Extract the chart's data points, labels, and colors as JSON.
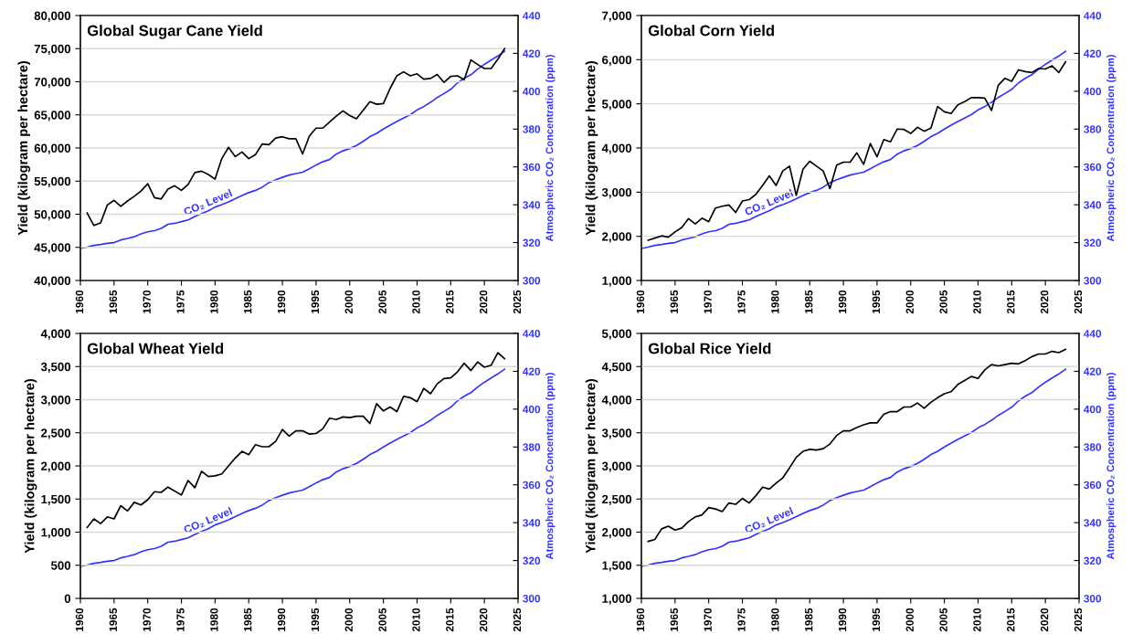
{
  "chart_data": [
    {
      "type": "line",
      "title": "Global Sugar Cane Yield",
      "ylabel": "Yield (kilogram per hectare)",
      "y2label": "Atmospheric CO₂ Concentration (ppm)",
      "xlim": [
        1960,
        2025
      ],
      "xticks": [
        1960,
        1965,
        1970,
        1975,
        1980,
        1985,
        1990,
        1995,
        2000,
        2005,
        2010,
        2015,
        2020,
        2025
      ],
      "ylim": [
        40000,
        80000
      ],
      "yticks": [
        {
          "value": 40000,
          "label": "40,000"
        },
        {
          "value": 45000,
          "label": "45,000"
        },
        {
          "value": 50000,
          "label": "50,000"
        },
        {
          "value": 55000,
          "label": "55,000"
        },
        {
          "value": 60000,
          "label": "60,000"
        },
        {
          "value": 65000,
          "label": "65,000"
        },
        {
          "value": 70000,
          "label": "70,000"
        },
        {
          "value": 75000,
          "label": "75,000"
        },
        {
          "value": 80000,
          "label": "80,000"
        }
      ],
      "y2lim": [
        300,
        440
      ],
      "y2ticks": [
        300,
        320,
        340,
        360,
        380,
        400,
        420,
        440
      ],
      "grid": "y",
      "series": [
        {
          "color": "#000000",
          "x": [
            1961,
            1962,
            1963,
            1964,
            1965,
            1966,
            1967,
            1968,
            1969,
            1970,
            1971,
            1972,
            1973,
            1974,
            1975,
            1976,
            1977,
            1978,
            1979,
            1980,
            1981,
            1982,
            1983,
            1984,
            1985,
            1986,
            1987,
            1988,
            1989,
            1990,
            1991,
            1992,
            1993,
            1994,
            1995,
            1996,
            1997,
            1998,
            1999,
            2000,
            2001,
            2002,
            2003,
            2004,
            2005,
            2006,
            2007,
            2008,
            2009,
            2010,
            2011,
            2012,
            2013,
            2014,
            2015,
            2016,
            2017,
            2018,
            2019,
            2020,
            2021,
            2022,
            2023
          ],
          "values": [
            50200,
            48300,
            48700,
            51400,
            52100,
            51200,
            52000,
            52700,
            53500,
            54600,
            52500,
            52300,
            53800,
            54300,
            53600,
            54500,
            56300,
            56500,
            56000,
            55300,
            58400,
            60100,
            58700,
            59400,
            58400,
            59000,
            60600,
            60500,
            61500,
            61700,
            61400,
            61400,
            59100,
            61800,
            63000,
            63000,
            63900,
            64800,
            65600,
            64900,
            64400,
            65700,
            67000,
            66600,
            66700,
            69000,
            70900,
            71500,
            70900,
            71200,
            70400,
            70500,
            71100,
            69900,
            70800,
            70900,
            70300,
            73300,
            72600,
            72000,
            72000,
            73400,
            75000
          ]
        },
        {
          "name": "CO₂ Level",
          "color": "#3333ff",
          "axis": "y2",
          "x": [
            1960,
            1961,
            1962,
            1963,
            1964,
            1965,
            1966,
            1967,
            1968,
            1969,
            1970,
            1971,
            1972,
            1973,
            1974,
            1975,
            1976,
            1977,
            1978,
            1979,
            1980,
            1981,
            1982,
            1983,
            1984,
            1985,
            1986,
            1987,
            1988,
            1989,
            1990,
            1991,
            1992,
            1993,
            1994,
            1995,
            1996,
            1997,
            1998,
            1999,
            2000,
            2001,
            2002,
            2003,
            2004,
            2005,
            2006,
            2007,
            2008,
            2009,
            2010,
            2011,
            2012,
            2013,
            2014,
            2015,
            2016,
            2017,
            2018,
            2019,
            2020,
            2021,
            2022,
            2023
          ],
          "values": [
            316.9,
            317.6,
            318.5,
            319.0,
            319.6,
            320.0,
            321.4,
            322.2,
            323.1,
            324.6,
            325.7,
            326.3,
            327.5,
            329.7,
            330.2,
            331.1,
            332.0,
            333.8,
            335.4,
            336.8,
            338.8,
            340.1,
            341.5,
            343.2,
            344.9,
            346.4,
            347.6,
            349.3,
            351.7,
            353.2,
            354.5,
            355.7,
            356.5,
            357.2,
            359.0,
            361.0,
            362.7,
            363.9,
            366.8,
            368.5,
            369.7,
            371.3,
            373.5,
            376.0,
            377.7,
            380.0,
            382.1,
            384.0,
            385.8,
            387.6,
            390.1,
            391.9,
            394.1,
            396.7,
            398.8,
            401.0,
            404.4,
            406.8,
            408.7,
            411.7,
            414.2,
            416.5,
            418.6,
            421.1
          ]
        }
      ]
    },
    {
      "type": "line",
      "title": "Global Corn Yield",
      "ylabel": "Yield (kilogram per hectare)",
      "y2label": "Atmospheric CO₂ Concentration (ppm)",
      "xlim": [
        1960,
        2025
      ],
      "xticks": [
        1960,
        1965,
        1970,
        1975,
        1980,
        1985,
        1990,
        1995,
        2000,
        2005,
        2010,
        2015,
        2020,
        2025
      ],
      "ylim": [
        1000,
        7000
      ],
      "yticks": [
        {
          "value": 1000,
          "label": "1,000"
        },
        {
          "value": 2000,
          "label": "2,000"
        },
        {
          "value": 3000,
          "label": "3,000"
        },
        {
          "value": 4000,
          "label": "4,000"
        },
        {
          "value": 5000,
          "label": "5,000"
        },
        {
          "value": 6000,
          "label": "6,000"
        },
        {
          "value": 7000,
          "label": "7,000"
        }
      ],
      "y2lim": [
        300,
        440
      ],
      "y2ticks": [
        300,
        320,
        340,
        360,
        380,
        400,
        420,
        440
      ],
      "grid": "y",
      "series": [
        {
          "color": "#000000",
          "x": [
            1961,
            1962,
            1963,
            1964,
            1965,
            1966,
            1967,
            1968,
            1969,
            1970,
            1971,
            1972,
            1973,
            1974,
            1975,
            1976,
            1977,
            1978,
            1979,
            1980,
            1981,
            1982,
            1983,
            1984,
            1985,
            1986,
            1987,
            1988,
            1989,
            1990,
            1991,
            1992,
            1993,
            1994,
            1995,
            1996,
            1997,
            1998,
            1999,
            2000,
            2001,
            2002,
            2003,
            2004,
            2005,
            2006,
            2007,
            2008,
            2009,
            2010,
            2011,
            2012,
            2013,
            2014,
            2015,
            2016,
            2017,
            2018,
            2019,
            2020,
            2021,
            2022,
            2023
          ],
          "values": [
            1910,
            1960,
            2010,
            1980,
            2100,
            2200,
            2400,
            2280,
            2410,
            2330,
            2640,
            2680,
            2710,
            2540,
            2800,
            2830,
            2950,
            3150,
            3370,
            3150,
            3480,
            3590,
            2930,
            3520,
            3700,
            3590,
            3480,
            3080,
            3610,
            3680,
            3680,
            3890,
            3630,
            4100,
            3800,
            4190,
            4140,
            4430,
            4420,
            4330,
            4470,
            4380,
            4450,
            4940,
            4820,
            4780,
            4980,
            5050,
            5140,
            5140,
            5130,
            4850,
            5420,
            5580,
            5510,
            5770,
            5730,
            5710,
            5800,
            5790,
            5860,
            5710,
            5950
          ]
        },
        {
          "name": "CO₂ Level",
          "color": "#3333ff",
          "axis": "y2",
          "x": [
            1960,
            1961,
            1962,
            1963,
            1964,
            1965,
            1966,
            1967,
            1968,
            1969,
            1970,
            1971,
            1972,
            1973,
            1974,
            1975,
            1976,
            1977,
            1978,
            1979,
            1980,
            1981,
            1982,
            1983,
            1984,
            1985,
            1986,
            1987,
            1988,
            1989,
            1990,
            1991,
            1992,
            1993,
            1994,
            1995,
            1996,
            1997,
            1998,
            1999,
            2000,
            2001,
            2002,
            2003,
            2004,
            2005,
            2006,
            2007,
            2008,
            2009,
            2010,
            2011,
            2012,
            2013,
            2014,
            2015,
            2016,
            2017,
            2018,
            2019,
            2020,
            2021,
            2022,
            2023
          ],
          "values": [
            316.9,
            317.6,
            318.5,
            319.0,
            319.6,
            320.0,
            321.4,
            322.2,
            323.1,
            324.6,
            325.7,
            326.3,
            327.5,
            329.7,
            330.2,
            331.1,
            332.0,
            333.8,
            335.4,
            336.8,
            338.8,
            340.1,
            341.5,
            343.2,
            344.9,
            346.4,
            347.6,
            349.3,
            351.7,
            353.2,
            354.5,
            355.7,
            356.5,
            357.2,
            359.0,
            361.0,
            362.7,
            363.9,
            366.8,
            368.5,
            369.7,
            371.3,
            373.5,
            376.0,
            377.7,
            380.0,
            382.1,
            384.0,
            385.8,
            387.6,
            390.1,
            391.9,
            394.1,
            396.7,
            398.8,
            401.0,
            404.4,
            406.8,
            408.7,
            411.7,
            414.2,
            416.5,
            418.6,
            421.1
          ]
        }
      ]
    },
    {
      "type": "line",
      "title": "Global Wheat Yield",
      "ylabel": "Yield (kilogram per hectare)",
      "y2label": "Atmospheric CO₂ Concentration (ppm)",
      "xlim": [
        1960,
        2025
      ],
      "xticks": [
        1960,
        1965,
        1970,
        1975,
        1980,
        1985,
        1990,
        1995,
        2000,
        2005,
        2010,
        2015,
        2020,
        2025
      ],
      "ylim": [
        0,
        4000
      ],
      "yticks": [
        0,
        500,
        {
          "value": 1000,
          "label": "1,000"
        },
        {
          "value": 1500,
          "label": "1,500"
        },
        {
          "value": 2000,
          "label": "2,000"
        },
        {
          "value": 2500,
          "label": "2,500"
        },
        {
          "value": 3000,
          "label": "3,000"
        },
        {
          "value": 3500,
          "label": "3,500"
        },
        {
          "value": 4000,
          "label": "4,000"
        }
      ],
      "y2lim": [
        300,
        440
      ],
      "y2ticks": [
        300,
        320,
        340,
        360,
        380,
        400,
        420,
        440
      ],
      "grid": "y",
      "series": [
        {
          "color": "#000000",
          "x": [
            1961,
            1962,
            1963,
            1964,
            1965,
            1966,
            1967,
            1968,
            1969,
            1970,
            1971,
            1972,
            1973,
            1974,
            1975,
            1976,
            1977,
            1978,
            1979,
            1980,
            1981,
            1982,
            1983,
            1984,
            1985,
            1986,
            1987,
            1988,
            1989,
            1990,
            1991,
            1992,
            1993,
            1994,
            1995,
            1996,
            1997,
            1998,
            1999,
            2000,
            2001,
            2002,
            2003,
            2004,
            2005,
            2006,
            2007,
            2008,
            2009,
            2010,
            2011,
            2012,
            2013,
            2014,
            2015,
            2016,
            2017,
            2018,
            2019,
            2020,
            2021,
            2022,
            2023
          ],
          "values": [
            1070,
            1200,
            1130,
            1230,
            1200,
            1400,
            1320,
            1450,
            1410,
            1490,
            1610,
            1600,
            1680,
            1620,
            1560,
            1780,
            1670,
            1920,
            1840,
            1850,
            1880,
            2000,
            2120,
            2220,
            2170,
            2320,
            2290,
            2290,
            2370,
            2550,
            2450,
            2530,
            2530,
            2480,
            2490,
            2560,
            2720,
            2700,
            2740,
            2730,
            2750,
            2750,
            2640,
            2940,
            2830,
            2890,
            2820,
            3050,
            3030,
            2970,
            3170,
            3090,
            3240,
            3320,
            3330,
            3420,
            3550,
            3440,
            3570,
            3490,
            3520,
            3710,
            3620
          ]
        },
        {
          "name": "CO₂ Level",
          "color": "#3333ff",
          "axis": "y2",
          "x": [
            1960,
            1961,
            1962,
            1963,
            1964,
            1965,
            1966,
            1967,
            1968,
            1969,
            1970,
            1971,
            1972,
            1973,
            1974,
            1975,
            1976,
            1977,
            1978,
            1979,
            1980,
            1981,
            1982,
            1983,
            1984,
            1985,
            1986,
            1987,
            1988,
            1989,
            1990,
            1991,
            1992,
            1993,
            1994,
            1995,
            1996,
            1997,
            1998,
            1999,
            2000,
            2001,
            2002,
            2003,
            2004,
            2005,
            2006,
            2007,
            2008,
            2009,
            2010,
            2011,
            2012,
            2013,
            2014,
            2015,
            2016,
            2017,
            2018,
            2019,
            2020,
            2021,
            2022,
            2023
          ],
          "values": [
            316.9,
            317.6,
            318.5,
            319.0,
            319.6,
            320.0,
            321.4,
            322.2,
            323.1,
            324.6,
            325.7,
            326.3,
            327.5,
            329.7,
            330.2,
            331.1,
            332.0,
            333.8,
            335.4,
            336.8,
            338.8,
            340.1,
            341.5,
            343.2,
            344.9,
            346.4,
            347.6,
            349.3,
            351.7,
            353.2,
            354.5,
            355.7,
            356.5,
            357.2,
            359.0,
            361.0,
            362.7,
            363.9,
            366.8,
            368.5,
            369.7,
            371.3,
            373.5,
            376.0,
            377.7,
            380.0,
            382.1,
            384.0,
            385.8,
            387.6,
            390.1,
            391.9,
            394.1,
            396.7,
            398.8,
            401.0,
            404.4,
            406.8,
            408.7,
            411.7,
            414.2,
            416.5,
            418.6,
            421.1
          ]
        }
      ]
    },
    {
      "type": "line",
      "title": "Global Rice Yield",
      "ylabel": "Yield (kilogram per hectare)",
      "y2label": "Atmospheric CO₂ Concentration (ppm)",
      "xlim": [
        1960,
        2025
      ],
      "xticks": [
        1960,
        1965,
        1970,
        1975,
        1980,
        1985,
        1990,
        1995,
        2000,
        2005,
        2010,
        2015,
        2020,
        2025
      ],
      "ylim": [
        1000,
        5000
      ],
      "yticks": [
        {
          "value": 1000,
          "label": "1,000"
        },
        {
          "value": 1500,
          "label": "1,500"
        },
        {
          "value": 2000,
          "label": "2,000"
        },
        {
          "value": 2500,
          "label": "2,500"
        },
        {
          "value": 3000,
          "label": "3,000"
        },
        {
          "value": 3500,
          "label": "3,500"
        },
        {
          "value": 4000,
          "label": "4,000"
        },
        {
          "value": 4500,
          "label": "4,500"
        },
        {
          "value": 5000,
          "label": "5,000"
        }
      ],
      "y2lim": [
        300,
        440
      ],
      "y2ticks": [
        300,
        320,
        340,
        360,
        380,
        400,
        420,
        440
      ],
      "grid": "y",
      "series": [
        {
          "color": "#000000",
          "x": [
            1961,
            1962,
            1963,
            1964,
            1965,
            1966,
            1967,
            1968,
            1969,
            1970,
            1971,
            1972,
            1973,
            1974,
            1975,
            1976,
            1977,
            1978,
            1979,
            1980,
            1981,
            1982,
            1983,
            1984,
            1985,
            1986,
            1987,
            1988,
            1989,
            1990,
            1991,
            1992,
            1993,
            1994,
            1995,
            1996,
            1997,
            1998,
            1999,
            2000,
            2001,
            2002,
            2003,
            2004,
            2005,
            2006,
            2007,
            2008,
            2009,
            2010,
            2011,
            2012,
            2013,
            2014,
            2015,
            2016,
            2017,
            2018,
            2019,
            2020,
            2021,
            2022,
            2023
          ],
          "values": [
            1860,
            1890,
            2050,
            2090,
            2030,
            2060,
            2160,
            2230,
            2260,
            2370,
            2350,
            2310,
            2440,
            2420,
            2510,
            2440,
            2550,
            2680,
            2650,
            2740,
            2820,
            2970,
            3130,
            3220,
            3250,
            3240,
            3260,
            3330,
            3460,
            3530,
            3530,
            3580,
            3620,
            3650,
            3650,
            3780,
            3820,
            3820,
            3890,
            3890,
            3950,
            3870,
            3960,
            4030,
            4090,
            4120,
            4230,
            4290,
            4350,
            4320,
            4450,
            4530,
            4510,
            4530,
            4550,
            4540,
            4590,
            4650,
            4690,
            4690,
            4730,
            4710,
            4760
          ]
        },
        {
          "name": "CO₂ Level",
          "color": "#3333ff",
          "axis": "y2",
          "x": [
            1960,
            1961,
            1962,
            1963,
            1964,
            1965,
            1966,
            1967,
            1968,
            1969,
            1970,
            1971,
            1972,
            1973,
            1974,
            1975,
            1976,
            1977,
            1978,
            1979,
            1980,
            1981,
            1982,
            1983,
            1984,
            1985,
            1986,
            1987,
            1988,
            1989,
            1990,
            1991,
            1992,
            1993,
            1994,
            1995,
            1996,
            1997,
            1998,
            1999,
            2000,
            2001,
            2002,
            2003,
            2004,
            2005,
            2006,
            2007,
            2008,
            2009,
            2010,
            2011,
            2012,
            2013,
            2014,
            2015,
            2016,
            2017,
            2018,
            2019,
            2020,
            2021,
            2022,
            2023
          ],
          "values": [
            316.9,
            317.6,
            318.5,
            319.0,
            319.6,
            320.0,
            321.4,
            322.2,
            323.1,
            324.6,
            325.7,
            326.3,
            327.5,
            329.7,
            330.2,
            331.1,
            332.0,
            333.8,
            335.4,
            336.8,
            338.8,
            340.1,
            341.5,
            343.2,
            344.9,
            346.4,
            347.6,
            349.3,
            351.7,
            353.2,
            354.5,
            355.7,
            356.5,
            357.2,
            359.0,
            361.0,
            362.7,
            363.9,
            366.8,
            368.5,
            369.7,
            371.3,
            373.5,
            376.0,
            377.7,
            380.0,
            382.1,
            384.0,
            385.8,
            387.6,
            390.1,
            391.9,
            394.1,
            396.7,
            398.8,
            401.0,
            404.4,
            406.8,
            408.7,
            411.7,
            414.2,
            416.5,
            418.6,
            421.1
          ]
        }
      ]
    }
  ]
}
